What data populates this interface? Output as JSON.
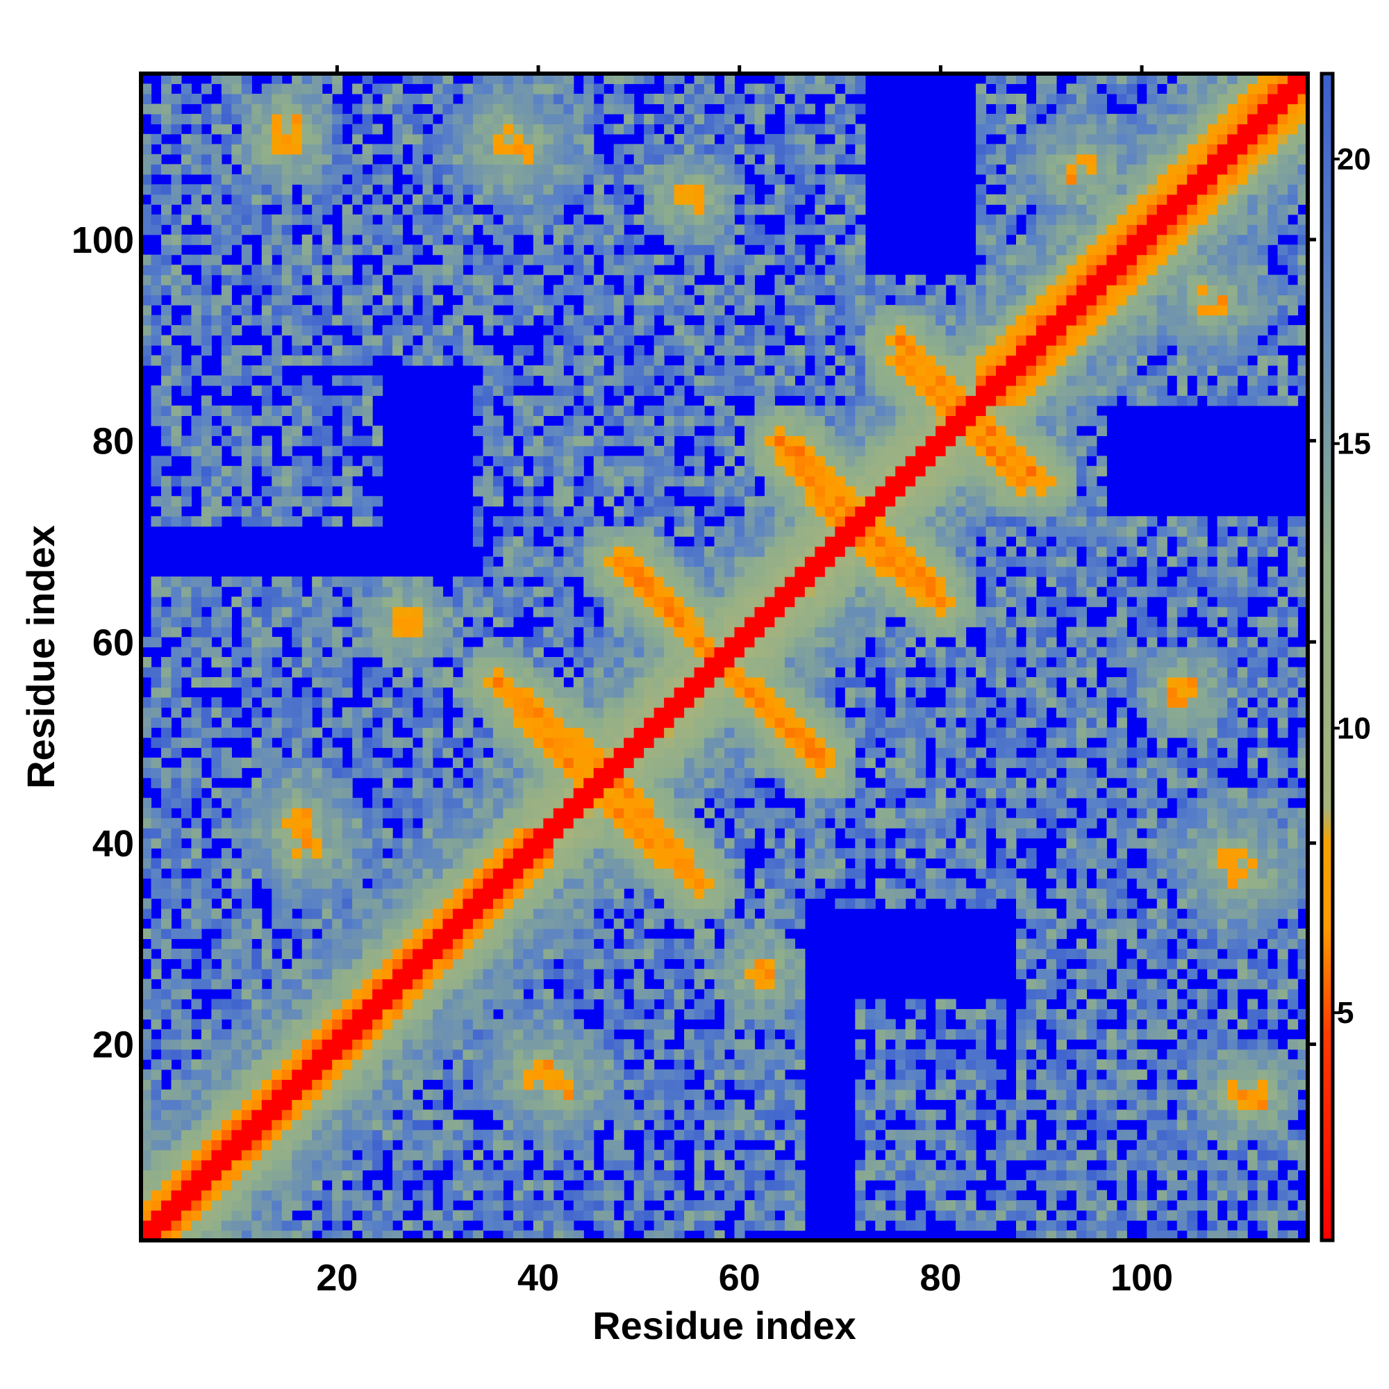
{
  "chart_data": {
    "type": "heatmap",
    "title": "",
    "xlabel": "Residue index",
    "ylabel": "Residue index",
    "n_residues": 116,
    "xlim": [
      0.5,
      116.5
    ],
    "ylim": [
      0.5,
      116.5
    ],
    "x_ticks": [
      20,
      40,
      60,
      80,
      100
    ],
    "y_ticks": [
      20,
      40,
      60,
      80,
      100
    ],
    "grid": false,
    "legend": "colorbar-right",
    "colorbar": {
      "range": [
        1,
        21.5
      ],
      "ticks": [
        5,
        10,
        15,
        20
      ],
      "stops": [
        {
          "value": 1,
          "color": "#ff0000"
        },
        {
          "value": 4.6,
          "color": "#ff3a00"
        },
        {
          "value": 6.5,
          "color": "#ff9a00"
        },
        {
          "value": 8,
          "color": "#f5a300"
        },
        {
          "value": 8.6,
          "color": "#a6b37c"
        },
        {
          "value": 13,
          "color": "#8fae8c"
        },
        {
          "value": 18,
          "color": "#5a82c6"
        },
        {
          "value": 21.5,
          "color": "#3c5fd0"
        }
      ],
      "above_cutoff_color": "#0000f5",
      "cutoff": 21
    },
    "contact_features": [
      {
        "kind": "diagonal_band",
        "half_width": 1.5,
        "description_value": 1
      },
      {
        "kind": "helix_band",
        "from": [
          1,
          1
        ],
        "to": [
          40,
          40
        ],
        "offset": 3
      },
      {
        "kind": "helix_band",
        "from": [
          84,
          84
        ],
        "to": [
          116,
          116
        ],
        "offset": 4
      },
      {
        "kind": "antiparallel",
        "from": [
          48,
          68
        ],
        "to": [
          60,
          56
        ]
      },
      {
        "kind": "antiparallel",
        "from": [
          36,
          56
        ],
        "to": [
          46,
          48
        ]
      },
      {
        "kind": "antiparallel",
        "from": [
          66,
          79
        ],
        "to": [
          74,
          70
        ]
      },
      {
        "kind": "antiparallel",
        "from": [
          76,
          90
        ],
        "to": [
          84,
          82
        ]
      },
      {
        "kind": "antiparallel",
        "from": [
          47,
          44
        ],
        "to": [
          56,
          36
        ]
      },
      {
        "kind": "antiparallel",
        "from": [
          58,
          58
        ],
        "to": [
          68,
          49
        ]
      },
      {
        "kind": "antiparallel",
        "from": [
          72,
          70
        ],
        "to": [
          80,
          64
        ]
      },
      {
        "kind": "antiparallel",
        "from": [
          82,
          82
        ],
        "to": [
          88,
          76
        ]
      },
      {
        "kind": "cluster",
        "center": [
          37,
          110
        ],
        "radius": 4
      },
      {
        "kind": "cluster",
        "center": [
          15,
          111
        ],
        "radius": 3
      },
      {
        "kind": "cluster",
        "center": [
          16,
          42
        ],
        "radius": 4
      },
      {
        "kind": "cluster",
        "center": [
          40,
          17
        ],
        "radius": 4
      },
      {
        "kind": "cluster",
        "center": [
          109,
          38
        ],
        "radius": 4
      },
      {
        "kind": "cluster",
        "center": [
          110,
          15
        ],
        "radius": 3
      },
      {
        "kind": "cluster",
        "center": [
          94,
          107
        ],
        "radius": 4
      },
      {
        "kind": "cluster",
        "center": [
          55,
          104
        ],
        "radius": 3
      },
      {
        "kind": "cluster",
        "center": [
          27,
          62
        ],
        "radius": 3
      },
      {
        "kind": "cluster",
        "center": [
          62,
          27
        ],
        "radius": 3
      }
    ],
    "contact_regions": [
      {
        "x": [
          3,
          14
        ],
        "y": [
          86,
          100
        ]
      },
      {
        "x": [
          3,
          47
        ],
        "y": [
          102,
          116
        ]
      },
      {
        "x": [
          48,
          66
        ],
        "y": [
          99,
          116
        ]
      },
      {
        "x": [
          84,
          116
        ],
        "y": [
          84,
          116
        ]
      },
      {
        "x": [
          2,
          60
        ],
        "y": [
          1,
          66
        ]
      },
      {
        "x": [
          40,
          72
        ],
        "y": [
          35,
          70
        ]
      },
      {
        "x": [
          58,
          116
        ],
        "y": [
          58,
          72
        ]
      },
      {
        "x": [
          70,
          116
        ],
        "y": [
          44,
          60
        ]
      },
      {
        "x": [
          88,
          116
        ],
        "y": [
          1,
          44
        ]
      },
      {
        "x": [
          36,
          54
        ],
        "y": [
          2,
          34
        ]
      },
      {
        "x": [
          64,
          90
        ],
        "y": [
          64,
          96
        ]
      },
      {
        "x": [
          34,
          66
        ],
        "y": [
          70,
          98
        ]
      },
      {
        "x": [
          72,
          86
        ],
        "y": [
          2,
          24
        ]
      }
    ]
  }
}
